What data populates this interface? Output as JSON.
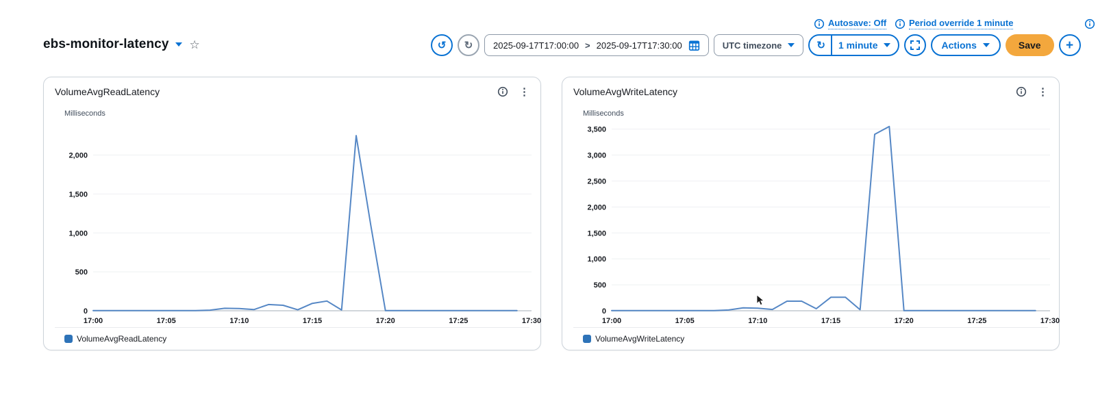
{
  "header": {
    "title": "ebs-monitor-latency",
    "info_links": [
      {
        "label": "Autosave: Off"
      },
      {
        "label": "Period override 1 minute"
      }
    ],
    "controls": {
      "date_range": {
        "start": "2025-09-17T17:00:00",
        "separator": ">",
        "end": "2025-09-17T17:30:00"
      },
      "timezone_label": "UTC timezone",
      "refresh_interval_label": "1 minute",
      "actions_label": "Actions",
      "save_label": "Save",
      "add_label": "+"
    }
  },
  "colors": {
    "accent_blue": "#0972d3",
    "save_orange": "#f3a73d",
    "line_blue": "#5587c5",
    "legend_blue": "#2e73b8",
    "gridline": "#eef0f2",
    "baseline": "#d1d6db"
  },
  "chart_data": [
    {
      "type": "line",
      "title": "VolumeAvgReadLatency",
      "ylabel": "Milliseconds",
      "grid": true,
      "legend_position": "bottom",
      "x_start_minute": 0,
      "x_end_minute": 30,
      "period_minutes": 1,
      "x_ticks": [
        {
          "minute": 0,
          "label": "17:00"
        },
        {
          "minute": 5,
          "label": "17:05"
        },
        {
          "minute": 10,
          "label": "17:10"
        },
        {
          "minute": 15,
          "label": "17:15"
        },
        {
          "minute": 20,
          "label": "17:20"
        },
        {
          "minute": 25,
          "label": "17:25"
        },
        {
          "minute": 30,
          "label": "17:30"
        }
      ],
      "y_ticks": [
        {
          "value": 0,
          "label": "0"
        },
        {
          "value": 500,
          "label": "500"
        },
        {
          "value": 1000,
          "label": "1,000"
        },
        {
          "value": 1500,
          "label": "1,500"
        },
        {
          "value": 2000,
          "label": "2,000"
        }
      ],
      "ylim_render": [
        0,
        2400
      ],
      "legend_color": "#2e73b8",
      "series": [
        {
          "name": "VolumeAvgReadLatency",
          "color": "#5587c5",
          "values": [
            2,
            2,
            2,
            2,
            2,
            2,
            2,
            3,
            8,
            32,
            28,
            15,
            80,
            70,
            12,
            95,
            125,
            10,
            2250,
            1100,
            2,
            2,
            2,
            2,
            2,
            2,
            2,
            2,
            2,
            2
          ]
        }
      ]
    },
    {
      "type": "line",
      "title": "VolumeAvgWriteLatency",
      "ylabel": "Milliseconds",
      "grid": true,
      "legend_position": "bottom",
      "x_start_minute": 0,
      "x_end_minute": 30,
      "period_minutes": 1,
      "x_ticks": [
        {
          "minute": 0,
          "label": "17:00"
        },
        {
          "minute": 5,
          "label": "17:05"
        },
        {
          "minute": 10,
          "label": "17:10"
        },
        {
          "minute": 15,
          "label": "17:15"
        },
        {
          "minute": 20,
          "label": "17:20"
        },
        {
          "minute": 25,
          "label": "17:25"
        },
        {
          "minute": 30,
          "label": "17:30"
        }
      ],
      "y_ticks": [
        {
          "value": 0,
          "label": "0"
        },
        {
          "value": 500,
          "label": "500"
        },
        {
          "value": 1000,
          "label": "1,000"
        },
        {
          "value": 1500,
          "label": "1,500"
        },
        {
          "value": 2000,
          "label": "2,000"
        },
        {
          "value": 2500,
          "label": "2,500"
        },
        {
          "value": 3000,
          "label": "3,000"
        },
        {
          "value": 3500,
          "label": "3,500"
        }
      ],
      "ylim_render": [
        0,
        3600
      ],
      "legend_color": "#2e73b8",
      "series": [
        {
          "name": "VolumeAvgWriteLatency",
          "color": "#5587c5",
          "values": [
            2,
            2,
            2,
            2,
            2,
            2,
            2,
            3,
            15,
            55,
            50,
            25,
            185,
            185,
            40,
            260,
            260,
            20,
            3400,
            3550,
            2,
            2,
            2,
            2,
            2,
            2,
            2,
            2,
            2,
            2
          ]
        }
      ]
    }
  ]
}
